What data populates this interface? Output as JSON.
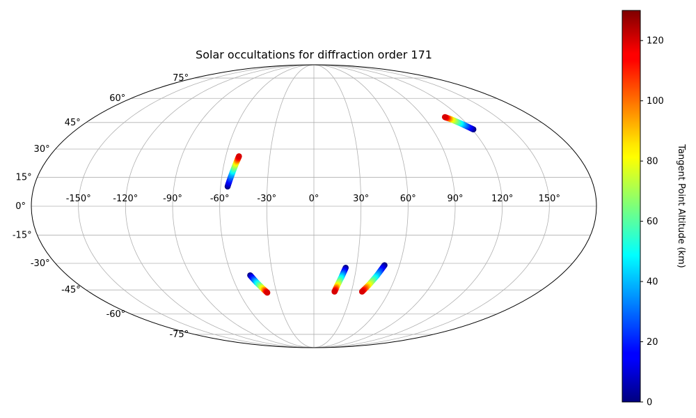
{
  "chart_data": {
    "type": "scatter",
    "projection": "mollweide",
    "title": "Solar occultations for diffraction order 171",
    "xlabel": "",
    "ylabel": "",
    "lon_ticks": [
      "-150°",
      "-120°",
      "-90°",
      "-60°",
      "-30°",
      "0°",
      "30°",
      "60°",
      "90°",
      "120°",
      "150°"
    ],
    "lat_ticks": [
      "-75°",
      "-60°",
      "-45°",
      "-30°",
      "-15°",
      "0°",
      "15°",
      "30°",
      "45°",
      "60°",
      "75°"
    ],
    "lon_tick_values": [
      -150,
      -120,
      -90,
      -60,
      -30,
      0,
      30,
      60,
      90,
      120,
      150
    ],
    "lat_tick_values": [
      -75,
      -60,
      -45,
      -30,
      -15,
      0,
      15,
      30,
      45,
      60,
      75
    ],
    "grid": true,
    "colormap": "jet",
    "colorbar": {
      "label": "Tangent Point Altitude (km)",
      "range": [
        0,
        130
      ],
      "ticks": [
        "0",
        "20",
        "40",
        "60",
        "80",
        "100",
        "120"
      ],
      "tick_values": [
        0,
        20,
        40,
        60,
        80,
        100,
        120
      ]
    },
    "series": [
      {
        "points": [
          [
            -55.5,
            10.2,
            0
          ],
          [
            -53.5,
            17.2,
            40
          ],
          [
            -52.0,
            22.5,
            80
          ],
          [
            -51.0,
            26.1,
            120
          ]
        ]
      },
      {
        "points": [
          [
            121.0,
            41.0,
            0
          ],
          [
            116.0,
            44.1,
            40
          ],
          [
            111.0,
            46.8,
            80
          ],
          [
            107.5,
            48.2,
            120
          ]
        ]
      },
      {
        "points": [
          [
            -46.5,
            -36.6,
            0
          ],
          [
            -43.5,
            -40.5,
            40
          ],
          [
            -40.0,
            -44.2,
            80
          ],
          [
            -37.5,
            -46.6,
            120
          ]
        ]
      },
      {
        "points": [
          [
            22.5,
            -32.4,
            0
          ],
          [
            20.5,
            -37.2,
            40
          ],
          [
            18.0,
            -42.4,
            80
          ],
          [
            16.5,
            -46.0,
            120
          ]
        ]
      },
      {
        "points": [
          [
            49.5,
            -31.0,
            0
          ],
          [
            46.0,
            -36.8,
            40
          ],
          [
            42.0,
            -42.2,
            80
          ],
          [
            38.5,
            -46.0,
            120
          ]
        ]
      }
    ]
  }
}
